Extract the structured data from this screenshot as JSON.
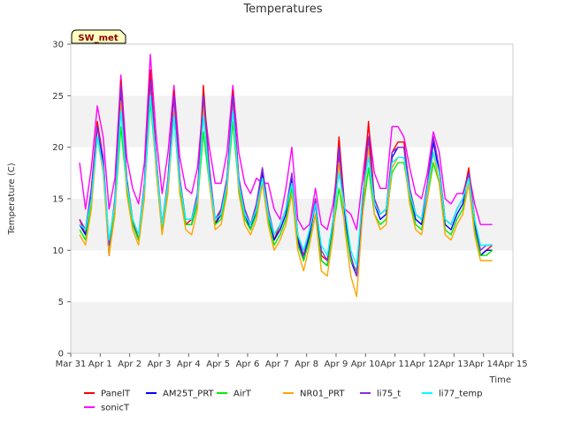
{
  "chart_data": {
    "type": "line",
    "title": "Temperatures",
    "xlabel": "Time",
    "ylabel": "Temperature (C)",
    "badge": "SW_met",
    "xlim": [
      0,
      15
    ],
    "ylim": [
      0,
      30
    ],
    "x_ticks": [
      {
        "value": 0,
        "label": "Mar 31"
      },
      {
        "value": 1,
        "label": "Apr 1"
      },
      {
        "value": 2,
        "label": "Apr 2"
      },
      {
        "value": 3,
        "label": "Apr 3"
      },
      {
        "value": 4,
        "label": "Apr 4"
      },
      {
        "value": 5,
        "label": "Apr 5"
      },
      {
        "value": 6,
        "label": "Apr 6"
      },
      {
        "value": 7,
        "label": "Apr 7"
      },
      {
        "value": 8,
        "label": "Apr 8"
      },
      {
        "value": 9,
        "label": "Apr 9"
      },
      {
        "value": 10,
        "label": "Apr 10"
      },
      {
        "value": 11,
        "label": "Apr 11"
      },
      {
        "value": 12,
        "label": "Apr 12"
      },
      {
        "value": 13,
        "label": "Apr 13"
      },
      {
        "value": 14,
        "label": "Apr 14"
      },
      {
        "value": 15,
        "label": "Apr 15"
      }
    ],
    "y_ticks": [
      0,
      5,
      10,
      15,
      20,
      25,
      30
    ],
    "grid": "horizontal bands",
    "legend_position": "bottom",
    "x": [
      0.3,
      0.5,
      0.7,
      0.9,
      1.1,
      1.3,
      1.5,
      1.7,
      1.9,
      2.1,
      2.3,
      2.5,
      2.7,
      2.9,
      3.1,
      3.3,
      3.5,
      3.7,
      3.9,
      4.1,
      4.3,
      4.5,
      4.7,
      4.9,
      5.1,
      5.3,
      5.5,
      5.7,
      5.9,
      6.1,
      6.3,
      6.5,
      6.7,
      6.9,
      7.1,
      7.3,
      7.5,
      7.7,
      7.9,
      8.1,
      8.3,
      8.5,
      8.7,
      8.9,
      9.1,
      9.3,
      9.5,
      9.7,
      9.9,
      10.1,
      10.3,
      10.5,
      10.7,
      10.9,
      11.1,
      11.3,
      11.5,
      11.7,
      11.9,
      12.1,
      12.3,
      12.5,
      12.7,
      12.9,
      13.1,
      13.3,
      13.5,
      13.7,
      13.9,
      14.1,
      14.3
    ],
    "series": [
      {
        "name": "PanelT",
        "color": "#ff0000",
        "values": [
          13.0,
          11.5,
          16.0,
          22.5,
          19.0,
          9.5,
          15.0,
          26.5,
          17.0,
          13.0,
          11.0,
          16.5,
          27.5,
          19.0,
          12.0,
          17.0,
          25.5,
          17.0,
          12.5,
          13.0,
          15.5,
          26.0,
          18.0,
          12.5,
          14.0,
          17.0,
          25.5,
          17.0,
          14.0,
          12.5,
          14.5,
          18.0,
          14.0,
          11.0,
          12.5,
          14.0,
          17.0,
          11.5,
          9.0,
          12.0,
          15.0,
          9.5,
          9.0,
          13.0,
          21.0,
          14.0,
          9.0,
          8.0,
          15.0,
          22.5,
          15.0,
          13.5,
          14.0,
          19.5,
          20.5,
          20.5,
          16.0,
          13.5,
          13.0,
          16.5,
          21.0,
          18.0,
          13.0,
          12.5,
          14.0,
          15.0,
          18.0,
          13.0,
          9.5,
          10.0,
          10.5
        ]
      },
      {
        "name": "AM25T_PRT",
        "color": "#0000ff",
        "values": [
          12.5,
          11.5,
          15.5,
          22.0,
          18.5,
          9.5,
          14.5,
          25.5,
          16.5,
          12.5,
          11.0,
          16.0,
          26.5,
          18.5,
          12.0,
          16.5,
          25.0,
          16.5,
          12.5,
          12.5,
          15.0,
          25.0,
          17.5,
          12.5,
          13.5,
          16.5,
          25.0,
          16.5,
          13.5,
          12.0,
          14.0,
          17.5,
          13.5,
          11.0,
          12.0,
          13.5,
          17.0,
          11.0,
          9.0,
          11.5,
          14.5,
          9.0,
          8.5,
          12.5,
          20.0,
          13.5,
          9.0,
          7.5,
          14.5,
          21.0,
          14.5,
          13.0,
          13.5,
          19.0,
          20.0,
          20.0,
          15.5,
          13.0,
          12.5,
          16.0,
          20.5,
          17.5,
          12.5,
          12.0,
          13.5,
          14.5,
          17.5,
          12.5,
          9.5,
          10.0,
          10.0
        ]
      },
      {
        "name": "AirT",
        "color": "#00ee00",
        "values": [
          12.0,
          11.0,
          14.5,
          21.0,
          18.0,
          10.0,
          14.0,
          22.0,
          16.0,
          12.5,
          11.0,
          15.5,
          24.5,
          18.0,
          12.0,
          16.0,
          23.0,
          16.0,
          12.5,
          12.5,
          14.5,
          21.5,
          16.5,
          12.5,
          13.0,
          16.0,
          22.5,
          16.0,
          13.0,
          12.0,
          13.5,
          16.5,
          13.0,
          10.5,
          11.5,
          13.0,
          16.0,
          10.5,
          9.0,
          11.0,
          13.5,
          9.0,
          8.5,
          12.0,
          16.0,
          12.5,
          9.0,
          8.0,
          13.5,
          18.0,
          13.5,
          12.5,
          13.0,
          17.5,
          18.5,
          18.5,
          15.0,
          12.5,
          12.0,
          15.0,
          18.5,
          16.5,
          12.0,
          11.5,
          13.0,
          14.0,
          16.5,
          12.0,
          9.5,
          9.5,
          10.0
        ]
      },
      {
        "name": "NR01_PRT",
        "color": "#ffa500",
        "values": [
          11.5,
          10.5,
          14.0,
          21.0,
          17.5,
          9.5,
          13.5,
          24.5,
          15.5,
          12.0,
          10.5,
          15.0,
          26.0,
          17.5,
          11.5,
          15.5,
          23.5,
          15.5,
          12.0,
          11.5,
          14.0,
          24.0,
          16.5,
          12.0,
          12.5,
          15.5,
          24.5,
          15.5,
          12.5,
          11.5,
          13.0,
          16.5,
          12.5,
          10.0,
          11.0,
          12.5,
          15.5,
          10.0,
          8.0,
          10.5,
          13.5,
          8.0,
          7.5,
          11.5,
          18.5,
          12.0,
          7.5,
          5.5,
          13.5,
          20.0,
          13.5,
          12.0,
          12.5,
          18.0,
          19.0,
          19.0,
          14.5,
          12.0,
          11.5,
          15.0,
          19.5,
          16.5,
          11.5,
          11.0,
          12.5,
          13.5,
          16.5,
          11.5,
          9.0,
          9.0,
          9.0
        ]
      },
      {
        "name": "li75_t",
        "color": "#8a2be2",
        "values": [
          13.0,
          12.0,
          16.0,
          22.0,
          19.0,
          10.5,
          15.0,
          26.0,
          17.0,
          13.0,
          11.5,
          16.5,
          26.5,
          19.0,
          12.5,
          17.0,
          25.0,
          17.0,
          13.0,
          13.0,
          15.5,
          25.0,
          18.0,
          13.0,
          14.0,
          17.0,
          25.0,
          17.0,
          14.0,
          12.5,
          14.5,
          18.0,
          14.0,
          11.5,
          12.5,
          14.0,
          17.5,
          11.5,
          9.5,
          12.0,
          15.0,
          10.0,
          9.0,
          13.0,
          20.0,
          14.0,
          9.5,
          7.5,
          15.0,
          21.0,
          15.0,
          13.5,
          14.0,
          19.5,
          20.0,
          20.0,
          16.0,
          13.5,
          13.0,
          16.5,
          21.0,
          18.0,
          13.0,
          12.5,
          14.0,
          15.0,
          17.5,
          13.0,
          10.0,
          10.5,
          10.5
        ]
      },
      {
        "name": "li77_temp",
        "color": "#00ffff",
        "values": [
          12.5,
          12.0,
          15.0,
          21.0,
          18.0,
          11.0,
          14.5,
          23.5,
          16.5,
          13.0,
          11.5,
          16.0,
          25.0,
          18.5,
          12.5,
          16.5,
          23.0,
          16.5,
          13.0,
          13.0,
          15.0,
          23.0,
          17.0,
          13.0,
          13.5,
          16.5,
          23.5,
          16.5,
          13.5,
          12.5,
          14.0,
          17.0,
          13.5,
          11.5,
          12.5,
          14.0,
          16.5,
          11.5,
          10.0,
          12.0,
          14.5,
          10.5,
          9.5,
          13.0,
          17.5,
          14.0,
          10.0,
          8.5,
          15.5,
          19.0,
          14.5,
          13.5,
          14.0,
          18.5,
          19.0,
          19.0,
          15.5,
          13.5,
          13.0,
          16.0,
          19.5,
          17.5,
          13.0,
          12.5,
          14.0,
          15.0,
          17.0,
          13.0,
          10.5,
          10.5,
          10.5
        ]
      },
      {
        "name": "sonicT",
        "color": "#ff00ff",
        "values": [
          18.5,
          14.0,
          18.0,
          24.0,
          21.0,
          14.0,
          17.0,
          27.0,
          19.0,
          16.0,
          14.5,
          18.5,
          29.0,
          21.0,
          15.5,
          19.5,
          26.0,
          19.0,
          16.0,
          15.5,
          18.0,
          24.5,
          20.0,
          16.5,
          16.5,
          19.5,
          26.0,
          19.5,
          16.5,
          15.5,
          17.0,
          16.5,
          16.5,
          14.0,
          13.0,
          16.0,
          20.0,
          13.0,
          12.0,
          12.5,
          16.0,
          12.5,
          12.0,
          14.5,
          19.0,
          14.0,
          13.5,
          12.0,
          17.0,
          22.0,
          17.5,
          16.0,
          16.0,
          22.0,
          22.0,
          21.0,
          18.0,
          15.5,
          15.0,
          17.5,
          21.5,
          19.5,
          15.0,
          14.5,
          15.5,
          15.5,
          17.5,
          14.5,
          12.5,
          12.5,
          12.5
        ]
      }
    ]
  }
}
